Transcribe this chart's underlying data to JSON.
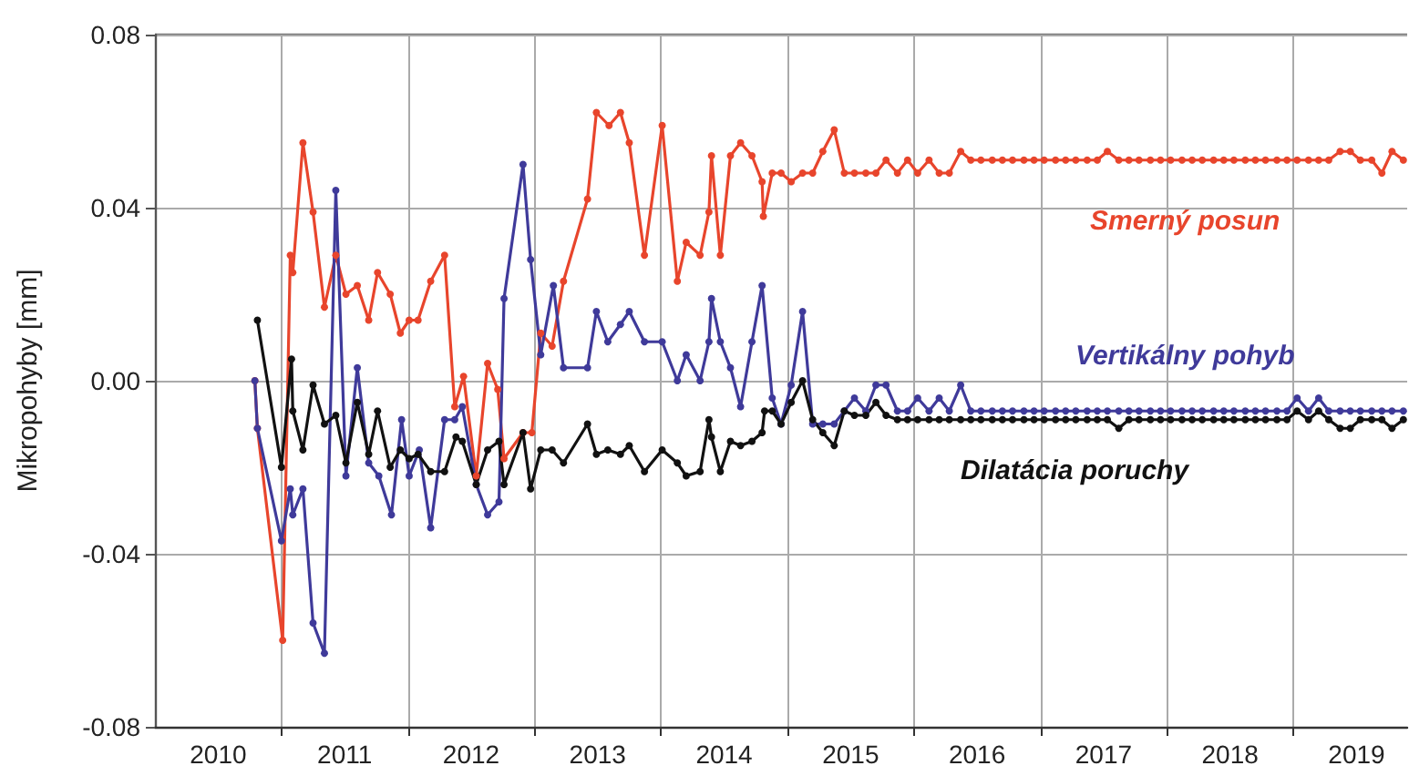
{
  "chart_data": {
    "type": "line",
    "ylabel": "Mikropohyby [mm]",
    "xlim": [
      2010,
      2019.9
    ],
    "xticks": [
      {
        "value": 2011,
        "label": null
      },
      {
        "value": 2012,
        "label": null
      },
      {
        "value": 2013,
        "label": null
      },
      {
        "value": 2014,
        "label": null
      },
      {
        "value": 2015,
        "label": null
      },
      {
        "value": 2016,
        "label": null
      },
      {
        "value": 2017,
        "label": null
      },
      {
        "value": 2018,
        "label": null
      },
      {
        "value": 2019,
        "label": null
      },
      {
        "value": 2010.5,
        "label": "2010"
      },
      {
        "value": 2011.5,
        "label": "2011"
      },
      {
        "value": 2012.5,
        "label": "2012"
      },
      {
        "value": 2013.5,
        "label": "2013"
      },
      {
        "value": 2014.5,
        "label": "2014"
      },
      {
        "value": 2015.5,
        "label": "2015"
      },
      {
        "value": 2016.5,
        "label": "2016"
      },
      {
        "value": 2017.5,
        "label": "2017"
      },
      {
        "value": 2018.5,
        "label": "2018"
      },
      {
        "value": 2019.5,
        "label": "2019"
      }
    ],
    "ylim": [
      -0.08,
      0.08
    ],
    "yticks": [
      {
        "value": -0.08,
        "label": "-0.08"
      },
      {
        "value": -0.04,
        "label": "-0.04"
      },
      {
        "value": 0,
        "label": "0.00"
      },
      {
        "value": 0.04,
        "label": "0.04"
      },
      {
        "value": 0.08,
        "label": "0.08"
      }
    ],
    "grid": true,
    "legend": false,
    "marker": "circle",
    "line_style": "solid",
    "series": [
      {
        "name": "Smerný posun",
        "color": "#e8452c",
        "x": [
          2010.79,
          2010.81,
          2011.01,
          2011.07,
          2011.09,
          2011.17,
          2011.25,
          2011.34,
          2011.43,
          2011.51,
          2011.6,
          2011.69,
          2011.76,
          2011.86,
          2011.94,
          2012.01,
          2012.08,
          2012.18,
          2012.29,
          2012.37,
          2012.44,
          2012.54,
          2012.63,
          2012.71,
          2012.76,
          2012.91,
          2012.98,
          2013.05,
          2013.14,
          2013.23,
          2013.42,
          2013.49,
          2013.59,
          2013.68,
          2013.75,
          2013.87,
          2014.01,
          2014.13,
          2014.2,
          2014.31,
          2014.38,
          2014.4,
          2014.47,
          2014.55,
          2014.63,
          2014.72,
          2014.8,
          2014.81,
          2014.88,
          2014.95,
          2015.03,
          2015.12,
          2015.2,
          2015.28,
          2015.37,
          2015.45,
          2015.53,
          2015.62,
          2015.7,
          2015.78,
          2015.87,
          2015.95,
          2016.03,
          2016.12,
          2016.2,
          2016.28,
          2016.37,
          2016.45,
          2016.53,
          2016.62,
          2016.7,
          2016.78,
          2016.87,
          2016.95,
          2017.03,
          2017.12,
          2017.2,
          2017.28,
          2017.37,
          2017.45,
          2017.53,
          2017.62,
          2017.7,
          2017.78,
          2017.87,
          2017.95,
          2018.03,
          2018.12,
          2018.2,
          2018.28,
          2018.37,
          2018.45,
          2018.53,
          2018.62,
          2018.7,
          2018.78,
          2018.87,
          2018.95,
          2019.03,
          2019.12,
          2019.2,
          2019.28,
          2019.37,
          2019.45,
          2019.53,
          2019.62,
          2019.7,
          2019.78,
          2019.87
        ],
        "values": [
          0.0,
          -0.011,
          -0.06,
          0.029,
          0.025,
          0.055,
          0.039,
          0.017,
          0.029,
          0.02,
          0.022,
          0.014,
          0.025,
          0.02,
          0.011,
          0.014,
          0.014,
          0.023,
          0.029,
          -0.006,
          0.001,
          -0.022,
          0.004,
          -0.002,
          -0.018,
          -0.012,
          -0.012,
          0.011,
          0.008,
          0.023,
          0.042,
          0.062,
          0.059,
          0.062,
          0.055,
          0.029,
          0.059,
          0.023,
          0.032,
          0.029,
          0.039,
          0.052,
          0.029,
          0.052,
          0.055,
          0.052,
          0.046,
          0.038,
          0.048,
          0.048,
          0.046,
          0.048,
          0.048,
          0.053,
          0.058,
          0.048,
          0.048,
          0.048,
          0.048,
          0.051,
          0.048,
          0.051,
          0.048,
          0.051,
          0.048,
          0.048,
          0.053,
          0.051,
          0.051,
          0.051,
          0.051,
          0.051,
          0.051,
          0.051,
          0.051,
          0.051,
          0.051,
          0.051,
          0.051,
          0.051,
          0.053,
          0.051,
          0.051,
          0.051,
          0.051,
          0.051,
          0.051,
          0.051,
          0.051,
          0.051,
          0.051,
          0.051,
          0.051,
          0.051,
          0.051,
          0.051,
          0.051,
          0.051,
          0.051,
          0.051,
          0.051,
          0.051,
          0.053,
          0.053,
          0.051,
          0.051,
          0.048,
          0.053,
          0.051
        ]
      },
      {
        "name": "Vertikálny pohyb",
        "color": "#3f3a9a",
        "x": [
          2010.79,
          2010.81,
          2011.0,
          2011.07,
          2011.09,
          2011.17,
          2011.25,
          2011.34,
          2011.43,
          2011.51,
          2011.6,
          2011.69,
          2011.77,
          2011.87,
          2011.95,
          2012.01,
          2012.09,
          2012.18,
          2012.29,
          2012.37,
          2012.43,
          2012.54,
          2012.63,
          2012.72,
          2012.76,
          2012.91,
          2012.97,
          2013.05,
          2013.15,
          2013.23,
          2013.42,
          2013.49,
          2013.58,
          2013.68,
          2013.75,
          2013.87,
          2014.01,
          2014.13,
          2014.2,
          2014.31,
          2014.38,
          2014.4,
          2014.47,
          2014.55,
          2014.63,
          2014.72,
          2014.8,
          2014.88,
          2014.95,
          2015.03,
          2015.12,
          2015.2,
          2015.28,
          2015.37,
          2015.45,
          2015.53,
          2015.62,
          2015.7,
          2015.78,
          2015.87,
          2015.95,
          2016.03,
          2016.12,
          2016.2,
          2016.28,
          2016.37,
          2016.45,
          2016.53,
          2016.62,
          2016.7,
          2016.78,
          2016.87,
          2016.95,
          2017.03,
          2017.12,
          2017.2,
          2017.28,
          2017.37,
          2017.45,
          2017.53,
          2017.62,
          2017.7,
          2017.78,
          2017.87,
          2017.95,
          2018.03,
          2018.12,
          2018.2,
          2018.28,
          2018.37,
          2018.45,
          2018.53,
          2018.62,
          2018.7,
          2018.78,
          2018.87,
          2018.95,
          2019.03,
          2019.12,
          2019.2,
          2019.28,
          2019.37,
          2019.45,
          2019.53,
          2019.62,
          2019.7,
          2019.78,
          2019.87
        ],
        "values": [
          0.0,
          -0.011,
          -0.037,
          -0.025,
          -0.031,
          -0.025,
          -0.056,
          -0.063,
          0.044,
          -0.022,
          0.003,
          -0.019,
          -0.022,
          -0.031,
          -0.009,
          -0.022,
          -0.016,
          -0.034,
          -0.009,
          -0.009,
          -0.006,
          -0.024,
          -0.031,
          -0.028,
          0.019,
          0.05,
          0.028,
          0.006,
          0.022,
          0.003,
          0.003,
          0.016,
          0.009,
          0.013,
          0.016,
          0.009,
          0.009,
          0.0,
          0.006,
          0.0,
          0.009,
          0.019,
          0.009,
          0.003,
          -0.006,
          0.009,
          0.022,
          -0.004,
          -0.01,
          -0.001,
          0.016,
          -0.01,
          -0.01,
          -0.01,
          -0.007,
          -0.004,
          -0.007,
          -0.001,
          -0.001,
          -0.007,
          -0.007,
          -0.004,
          -0.007,
          -0.004,
          -0.007,
          -0.001,
          -0.007,
          -0.007,
          -0.007,
          -0.007,
          -0.007,
          -0.007,
          -0.007,
          -0.007,
          -0.007,
          -0.007,
          -0.007,
          -0.007,
          -0.007,
          -0.007,
          -0.007,
          -0.007,
          -0.007,
          -0.007,
          -0.007,
          -0.007,
          -0.007,
          -0.007,
          -0.007,
          -0.007,
          -0.007,
          -0.007,
          -0.007,
          -0.007,
          -0.007,
          -0.007,
          -0.007,
          -0.004,
          -0.007,
          -0.004,
          -0.007,
          -0.007,
          -0.007,
          -0.007,
          -0.007,
          -0.007,
          -0.007,
          -0.007
        ]
      },
      {
        "name": "Dilatácia poruchy",
        "color": "#111111",
        "x": [
          2010.81,
          2011.0,
          2011.08,
          2011.09,
          2011.17,
          2011.25,
          2011.34,
          2011.43,
          2011.51,
          2011.6,
          2011.69,
          2011.76,
          2011.86,
          2011.94,
          2012.01,
          2012.08,
          2012.18,
          2012.29,
          2012.38,
          2012.43,
          2012.54,
          2012.63,
          2012.72,
          2012.76,
          2012.91,
          2012.97,
          2013.05,
          2013.14,
          2013.23,
          2013.42,
          2013.49,
          2013.58,
          2013.68,
          2013.75,
          2013.87,
          2014.01,
          2014.13,
          2014.2,
          2014.31,
          2014.38,
          2014.4,
          2014.47,
          2014.55,
          2014.63,
          2014.72,
          2014.8,
          2014.82,
          2014.88,
          2014.95,
          2015.03,
          2015.12,
          2015.2,
          2015.28,
          2015.37,
          2015.45,
          2015.53,
          2015.62,
          2015.7,
          2015.78,
          2015.87,
          2015.95,
          2016.03,
          2016.12,
          2016.2,
          2016.28,
          2016.37,
          2016.45,
          2016.53,
          2016.62,
          2016.7,
          2016.78,
          2016.87,
          2016.95,
          2017.03,
          2017.12,
          2017.2,
          2017.28,
          2017.37,
          2017.45,
          2017.53,
          2017.62,
          2017.7,
          2017.78,
          2017.87,
          2017.95,
          2018.03,
          2018.12,
          2018.2,
          2018.28,
          2018.37,
          2018.45,
          2018.53,
          2018.62,
          2018.7,
          2018.78,
          2018.87,
          2018.95,
          2019.03,
          2019.12,
          2019.2,
          2019.28,
          2019.37,
          2019.45,
          2019.53,
          2019.62,
          2019.7,
          2019.78,
          2019.87
        ],
        "values": [
          0.014,
          -0.02,
          0.005,
          -0.007,
          -0.016,
          -0.001,
          -0.01,
          -0.008,
          -0.019,
          -0.005,
          -0.017,
          -0.007,
          -0.02,
          -0.016,
          -0.018,
          -0.017,
          -0.021,
          -0.021,
          -0.013,
          -0.014,
          -0.024,
          -0.016,
          -0.014,
          -0.024,
          -0.012,
          -0.025,
          -0.016,
          -0.016,
          -0.019,
          -0.01,
          -0.017,
          -0.016,
          -0.017,
          -0.015,
          -0.021,
          -0.016,
          -0.019,
          -0.022,
          -0.021,
          -0.009,
          -0.013,
          -0.021,
          -0.014,
          -0.015,
          -0.014,
          -0.012,
          -0.007,
          -0.007,
          -0.01,
          -0.005,
          0.0,
          -0.009,
          -0.012,
          -0.015,
          -0.007,
          -0.008,
          -0.008,
          -0.005,
          -0.008,
          -0.009,
          -0.009,
          -0.009,
          -0.009,
          -0.009,
          -0.009,
          -0.009,
          -0.009,
          -0.009,
          -0.009,
          -0.009,
          -0.009,
          -0.009,
          -0.009,
          -0.009,
          -0.009,
          -0.009,
          -0.009,
          -0.009,
          -0.009,
          -0.009,
          -0.011,
          -0.009,
          -0.009,
          -0.009,
          -0.009,
          -0.009,
          -0.009,
          -0.009,
          -0.009,
          -0.009,
          -0.009,
          -0.009,
          -0.009,
          -0.009,
          -0.009,
          -0.009,
          -0.009,
          -0.007,
          -0.009,
          -0.007,
          -0.009,
          -0.011,
          -0.011,
          -0.009,
          -0.009,
          -0.009,
          -0.011,
          -0.009
        ]
      }
    ]
  }
}
